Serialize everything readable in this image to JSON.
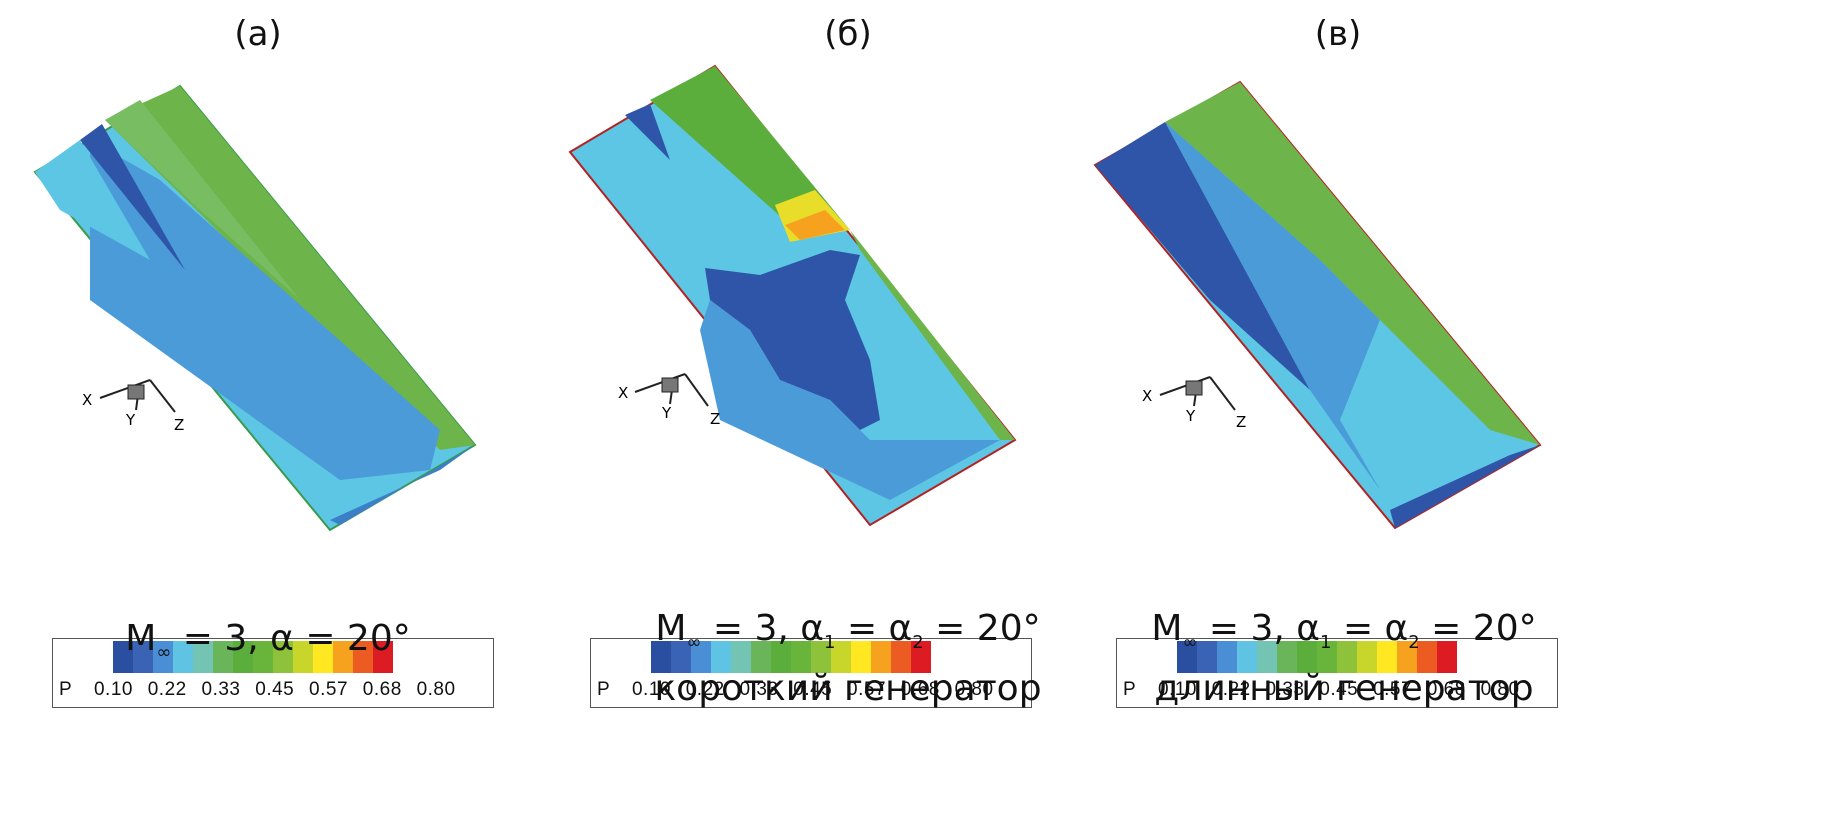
{
  "legend": {
    "variable": "P",
    "ticks": [
      "0.10",
      "0.22",
      "0.33",
      "0.45",
      "0.57",
      "0.68",
      "0.80"
    ],
    "colors": [
      "#2a4ea0",
      "#3a62b5",
      "#4a8fd6",
      "#5fc3e4",
      "#74c4b4",
      "#6ab55a",
      "#5cae3c",
      "#69b43a",
      "#8dc23a",
      "#c8d62c",
      "#ffe822",
      "#f7a21e",
      "#ec5b22",
      "#dc1c22"
    ]
  },
  "axes": {
    "x": "X",
    "y": "Y",
    "z": "Z"
  },
  "panels": [
    {
      "label": "(a)",
      "mach": "M",
      "mach_sub": "∞",
      "eq": " = 3, α = 20°",
      "alpha_sub1": "",
      "alpha_sub2": "",
      "line2": ""
    },
    {
      "label": "(б)",
      "mach": "M",
      "mach_sub": "∞",
      "eq_a": " = 3, α",
      "sub1": "1",
      "eq_b": " = α",
      "sub2": "2",
      "eq_c": " = 20°",
      "line2": "короткий генератор"
    },
    {
      "label": "(в)",
      "mach": "M",
      "mach_sub": "∞",
      "eq_a": " = 3, α",
      "sub1": "1",
      "eq_b": " = α",
      "sub2": "2",
      "eq_c": " = 20°",
      "line2": "длинный генератор"
    }
  ]
}
